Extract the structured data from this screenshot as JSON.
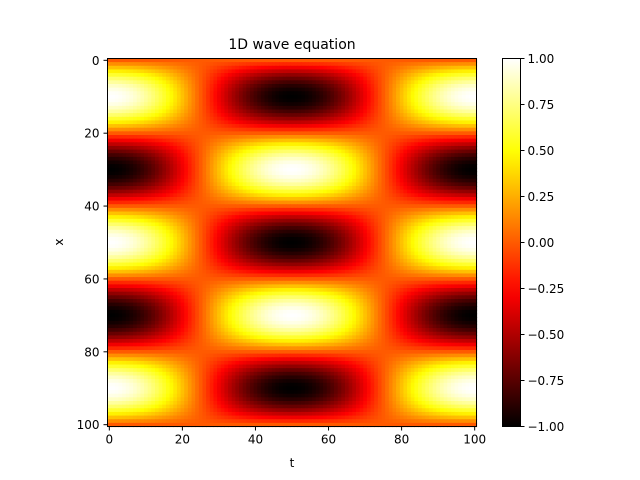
{
  "chart_data": {
    "type": "heatmap",
    "title": "1D wave equation",
    "xlabel": "t",
    "ylabel": "x",
    "xlim": [
      0,
      100
    ],
    "ylim": [
      100,
      0
    ],
    "x_ticks": [
      "0",
      "20",
      "40",
      "60",
      "80",
      "100"
    ],
    "y_ticks": [
      "0",
      "20",
      "40",
      "60",
      "80",
      "100"
    ],
    "colormap": "hot",
    "colorbar": {
      "range": [
        -1.0,
        1.0
      ],
      "ticks": [
        "1.00",
        "0.75",
        "0.50",
        "0.25",
        "0.00",
        "−0.25",
        "−0.50",
        "−0.75",
        "−1.00"
      ],
      "tick_values": [
        1.0,
        0.75,
        0.5,
        0.25,
        0.0,
        -0.25,
        -0.5,
        -0.75,
        -1.0
      ]
    },
    "grid": false,
    "function": "u(x,t) = sin(pi*x/20) * cos(pi*t/50)",
    "grid_size": [
      101,
      101
    ]
  }
}
